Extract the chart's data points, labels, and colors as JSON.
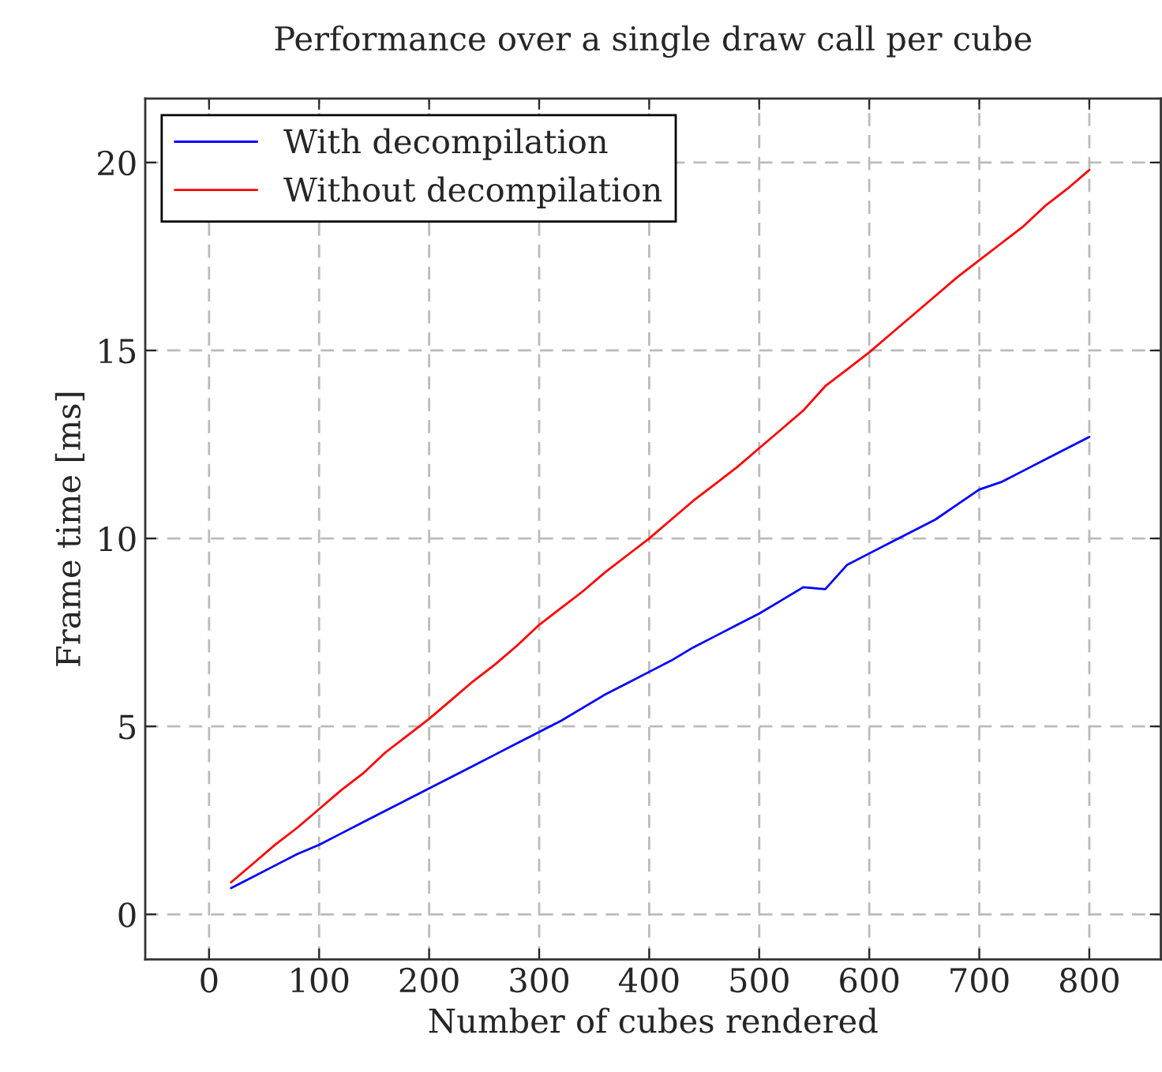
{
  "chart_data": {
    "type": "line",
    "title": "Performance over a single draw call per cube",
    "xlabel": "Number of cubes rendered",
    "ylabel": "Frame time [ms]",
    "x": [
      20,
      40,
      60,
      80,
      100,
      120,
      140,
      160,
      180,
      200,
      220,
      240,
      260,
      280,
      300,
      320,
      340,
      360,
      380,
      400,
      420,
      440,
      460,
      480,
      500,
      520,
      540,
      560,
      580,
      600,
      620,
      640,
      660,
      680,
      700,
      720,
      740,
      760,
      780,
      800
    ],
    "series": [
      {
        "name": "With decompilation",
        "color": "#0000ff",
        "values": [
          0.7,
          1.0,
          1.3,
          1.6,
          1.85,
          2.15,
          2.45,
          2.75,
          3.05,
          3.35,
          3.65,
          3.95,
          4.25,
          4.55,
          4.85,
          5.15,
          5.5,
          5.85,
          6.15,
          6.45,
          6.75,
          7.1,
          7.4,
          7.7,
          8.0,
          8.35,
          8.7,
          8.65,
          9.3,
          9.6,
          9.9,
          10.2,
          10.5,
          10.9,
          11.3,
          11.5,
          11.8,
          12.1,
          12.4,
          12.7
        ]
      },
      {
        "name": "Without decompilation",
        "color": "#ff0000",
        "values": [
          0.85,
          1.35,
          1.85,
          2.3,
          2.8,
          3.3,
          3.75,
          4.3,
          4.75,
          5.2,
          5.7,
          6.2,
          6.65,
          7.15,
          7.7,
          8.15,
          8.6,
          9.1,
          9.55,
          10.0,
          10.5,
          11.0,
          11.45,
          11.9,
          12.4,
          12.9,
          13.4,
          14.05,
          14.5,
          14.95,
          15.45,
          15.95,
          16.45,
          16.95,
          17.4,
          17.85,
          18.3,
          18.85,
          19.3,
          19.8
        ]
      }
    ],
    "xlim": [
      -58,
      865
    ],
    "ylim": [
      -1.2,
      21.7
    ],
    "xticks": [
      0,
      100,
      200,
      300,
      400,
      500,
      600,
      700,
      800
    ],
    "yticks": [
      0,
      5,
      10,
      15,
      20
    ],
    "grid": true,
    "legend": "top left",
    "marker": "none",
    "line_style": "solid"
  }
}
